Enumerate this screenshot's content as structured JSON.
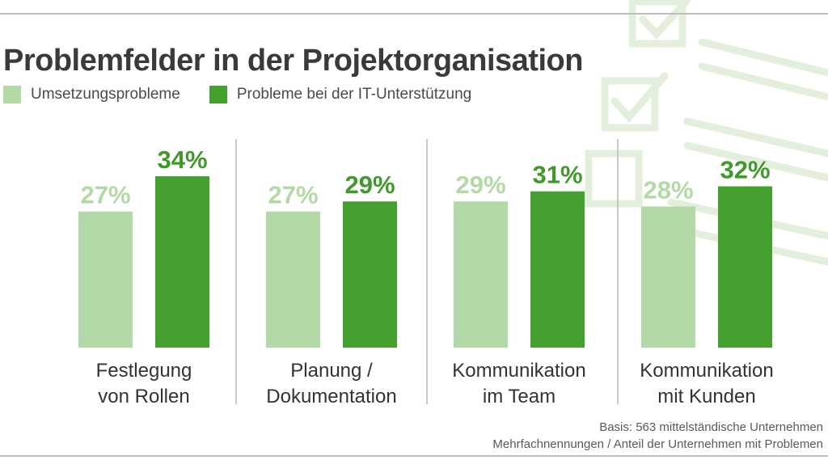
{
  "title": "Problemfelder in der Projektorganisation",
  "legend": [
    {
      "label": "Umsetzungsprobleme",
      "color": "#b3d9a6"
    },
    {
      "label": "Probleme bei der IT-Unterstützung",
      "color": "#45a12f"
    }
  ],
  "footnotes": [
    "Basis: 563 mittelständische Unternehmen",
    "Mehrfachnennungen / Anteil der Unternehmen mit Problemen"
  ],
  "decoration": {
    "icon": "checklist-icon",
    "color": "#e3efdc"
  },
  "chart_data": {
    "type": "bar",
    "categories": [
      [
        "Festlegung",
        "von Rollen"
      ],
      [
        "Planung /",
        "Dokumentation"
      ],
      [
        "Kommunikation",
        "im Team"
      ],
      [
        "Kommunikation",
        "mit Kunden"
      ]
    ],
    "series": [
      {
        "name": "Umsetzungsprobleme",
        "values": [
          27,
          27,
          29,
          28
        ],
        "labels": [
          "27%",
          "27%",
          "29%",
          "28%"
        ],
        "color": "#b3d9a6",
        "label_color": "#b3d9a6"
      },
      {
        "name": "Probleme bei der IT-Unterstützung",
        "values": [
          34,
          29,
          31,
          32
        ],
        "labels": [
          "34%",
          "29%",
          "31%",
          "32%"
        ],
        "color": "#45a12f",
        "label_color": "#3f9a2a"
      }
    ],
    "unit": "%",
    "ylim": [
      0,
      34
    ],
    "grid": false,
    "legend_position": "top-left"
  }
}
